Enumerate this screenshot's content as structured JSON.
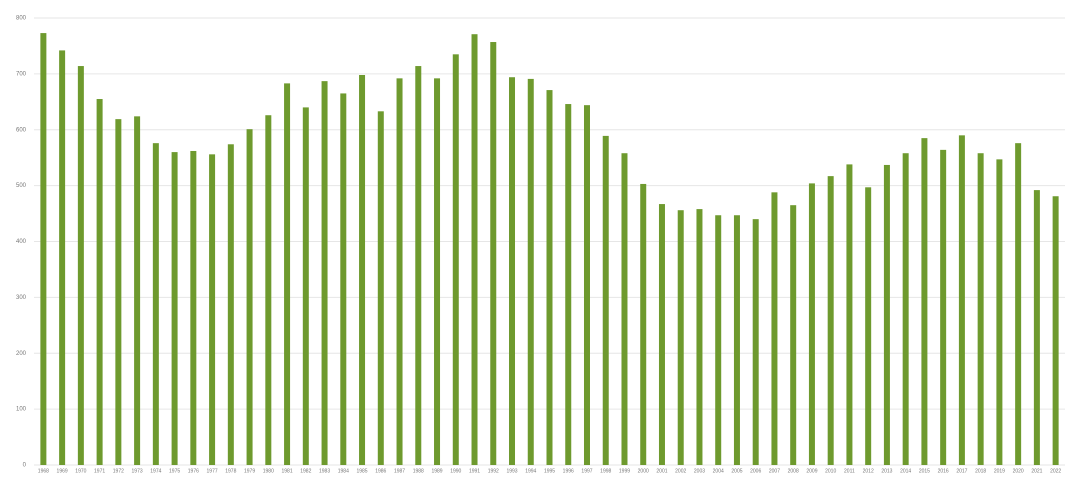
{
  "chart_data": {
    "type": "bar",
    "categories": [
      "1968",
      "1969",
      "1970",
      "1971",
      "1972",
      "1973",
      "1974",
      "1975",
      "1976",
      "1977",
      "1978",
      "1979",
      "1980",
      "1981",
      "1982",
      "1983",
      "1984",
      "1985",
      "1986",
      "1987",
      "1988",
      "1989",
      "1990",
      "1991",
      "1992",
      "1993",
      "1994",
      "1995",
      "1996",
      "1997",
      "1998",
      "1999",
      "2000",
      "2001",
      "2002",
      "2003",
      "2004",
      "2005",
      "2006",
      "2007",
      "2008",
      "2009",
      "2010",
      "2011",
      "2012",
      "2013",
      "2014",
      "2015",
      "2016",
      "2017",
      "2018",
      "2019",
      "2020",
      "2021",
      "2022"
    ],
    "values": [
      773,
      742,
      714,
      655,
      619,
      624,
      576,
      560,
      562,
      556,
      574,
      601,
      626,
      683,
      640,
      687,
      665,
      698,
      633,
      692,
      714,
      692,
      735,
      771,
      757,
      694,
      691,
      671,
      646,
      644,
      589,
      558,
      503,
      467,
      456,
      458,
      447,
      447,
      440,
      488,
      465,
      504,
      517,
      538,
      497,
      537,
      558,
      585,
      564,
      590,
      558,
      547,
      576,
      492,
      481
    ],
    "color": "#6e9a2e",
    "ylim": [
      0,
      800
    ],
    "yticks": [
      0,
      100,
      200,
      300,
      400,
      500,
      600,
      700,
      800
    ],
    "grid": true
  }
}
